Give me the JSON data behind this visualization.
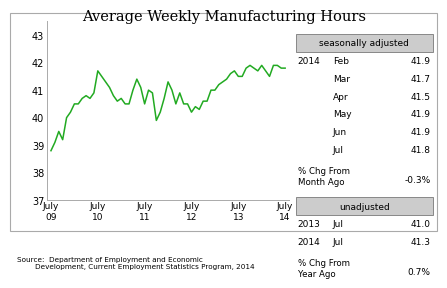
{
  "title": "Average Weekly Manufacturing Hours",
  "line_color": "#22aa22",
  "background_color": "#ffffff",
  "ylim": [
    37,
    43.5
  ],
  "yticks": [
    37,
    38,
    39,
    40,
    41,
    42,
    43
  ],
  "xlabel_years": [
    "09",
    "10",
    "11",
    "12",
    "13",
    "14"
  ],
  "source_text": "Source:  Department of Employment and Economic\n        Development, Current Employment Statistics Program, 2014",
  "seasonally_adjusted_label": "seasonally adjusted",
  "unadjusted_label": "unadjusted",
  "sa_pct_chg": "-0.3%",
  "ua_pct_chg": "0.7%",
  "sa_rows": [
    [
      "2014",
      "Feb",
      "41.9"
    ],
    [
      "",
      "Mar",
      "41.7"
    ],
    [
      "",
      "Apr",
      "41.5"
    ],
    [
      "",
      "May",
      "41.9"
    ],
    [
      "",
      "Jun",
      "41.9"
    ],
    [
      "",
      "Jul",
      "41.8"
    ]
  ],
  "ua_rows": [
    [
      "2013",
      "Jul",
      "41.0"
    ],
    [
      "2014",
      "Jul",
      "41.3"
    ]
  ],
  "x_values": [
    0,
    1,
    2,
    3,
    4,
    5,
    6,
    7,
    8,
    9,
    10,
    11,
    12,
    13,
    14,
    15,
    16,
    17,
    18,
    19,
    20,
    21,
    22,
    23,
    24,
    25,
    26,
    27,
    28,
    29,
    30,
    31,
    32,
    33,
    34,
    35,
    36,
    37,
    38,
    39,
    40,
    41,
    42,
    43,
    44,
    45,
    46,
    47,
    48,
    49,
    50,
    51,
    52,
    53,
    54,
    55,
    56,
    57,
    58,
    59,
    60
  ],
  "y_values": [
    38.8,
    39.1,
    39.5,
    39.2,
    40.0,
    40.2,
    40.5,
    40.5,
    40.7,
    40.8,
    40.7,
    40.9,
    41.7,
    41.5,
    41.3,
    41.1,
    40.8,
    40.6,
    40.7,
    40.5,
    40.5,
    41.0,
    41.4,
    41.1,
    40.5,
    41.0,
    40.9,
    39.9,
    40.2,
    40.7,
    41.3,
    41.0,
    40.5,
    40.9,
    40.5,
    40.5,
    40.2,
    40.4,
    40.3,
    40.6,
    40.6,
    41.0,
    41.0,
    41.2,
    41.3,
    41.4,
    41.6,
    41.7,
    41.5,
    41.5,
    41.8,
    41.9,
    41.8,
    41.7,
    41.9,
    41.7,
    41.5,
    41.9,
    41.9,
    41.8,
    41.8
  ]
}
